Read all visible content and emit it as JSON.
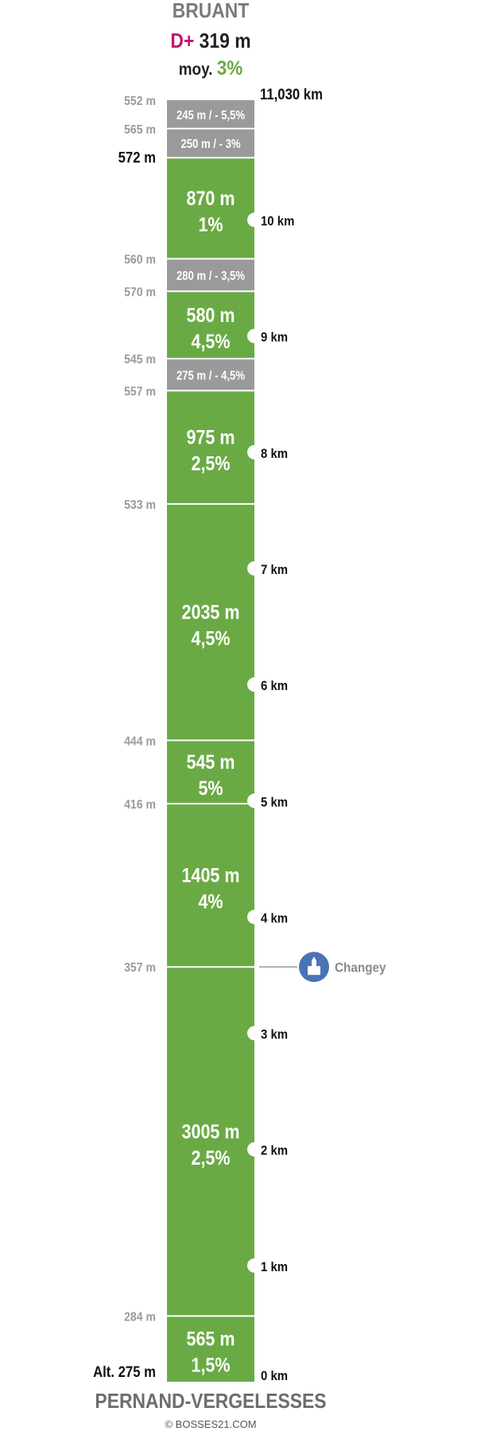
{
  "header": {
    "title": "BRUANT",
    "dplus_label": "D+",
    "dplus_value": "319 m",
    "avg_label": "moy.",
    "avg_value": "3%"
  },
  "footer": {
    "start_name": "PERNAND-VERGELESSES",
    "copyright": "© BOSSES21.COM"
  },
  "colors": {
    "climb": "#6aaa45",
    "descent": "#9a9a9a",
    "dplus": "#c8106e",
    "poi": "#4a73b5"
  },
  "chart_data": {
    "type": "bar",
    "total_distance_km": 11.03,
    "total_distance_label": "11,030 km",
    "segments": [
      {
        "length_m": 565,
        "grade": "1,5%",
        "kind": "climb",
        "label_main": "565 m",
        "label_sub": "1,5%"
      },
      {
        "length_m": 3005,
        "grade": "2,5%",
        "kind": "climb",
        "label_main": "3005 m",
        "label_sub": "2,5%"
      },
      {
        "length_m": 1405,
        "grade": "4%",
        "kind": "climb",
        "label_main": "1405 m",
        "label_sub": "4%"
      },
      {
        "length_m": 545,
        "grade": "5%",
        "kind": "climb",
        "label_main": "545 m",
        "label_sub": "5%"
      },
      {
        "length_m": 2035,
        "grade": "4,5%",
        "kind": "climb",
        "label_main": "2035 m",
        "label_sub": "4,5%"
      },
      {
        "length_m": 975,
        "grade": "2,5%",
        "kind": "climb",
        "label_main": "975 m",
        "label_sub": "2,5%"
      },
      {
        "length_m": 275,
        "grade": "-4,5%",
        "kind": "descent",
        "label_main": "275 m / - 4,5%",
        "label_sub": ""
      },
      {
        "length_m": 580,
        "grade": "4,5%",
        "kind": "climb",
        "label_main": "580 m",
        "label_sub": "4,5%"
      },
      {
        "length_m": 280,
        "grade": "-3,5%",
        "kind": "descent",
        "label_main": "280 m / - 3,5%",
        "label_sub": ""
      },
      {
        "length_m": 870,
        "grade": "1%",
        "kind": "climb",
        "label_main": "870 m",
        "label_sub": "1%"
      },
      {
        "length_m": 250,
        "grade": "-3%",
        "kind": "descent",
        "label_main": "250 m / - 3%",
        "label_sub": ""
      },
      {
        "length_m": 245,
        "grade": "-5,5%",
        "kind": "descent",
        "label_main": "245 m / - 5,5%",
        "label_sub": ""
      }
    ],
    "altitudes": [
      {
        "label": "Alt. 275 m",
        "km": 0,
        "style": "start"
      },
      {
        "label": "284 m",
        "km": 0.565,
        "style": "minor"
      },
      {
        "label": "357 m",
        "km": 3.57,
        "style": "minor"
      },
      {
        "label": "416 m",
        "km": 4.975,
        "style": "minor"
      },
      {
        "label": "444 m",
        "km": 5.52,
        "style": "minor"
      },
      {
        "label": "533 m",
        "km": 7.555,
        "style": "minor"
      },
      {
        "label": "557 m",
        "km": 8.53,
        "style": "minor"
      },
      {
        "label": "545 m",
        "km": 8.805,
        "style": "minor"
      },
      {
        "label": "570 m",
        "km": 9.385,
        "style": "minor"
      },
      {
        "label": "560 m",
        "km": 9.665,
        "style": "minor"
      },
      {
        "label": "572 m",
        "km": 10.535,
        "style": "summit"
      },
      {
        "label": "565 m",
        "km": 10.785,
        "style": "minor"
      },
      {
        "label": "552 m",
        "km": 11.03,
        "style": "minor"
      }
    ],
    "km_markers": [
      {
        "km": 0,
        "label": "0 km",
        "notch": false
      },
      {
        "km": 1,
        "label": "1 km",
        "notch": true
      },
      {
        "km": 2,
        "label": "2 km",
        "notch": true
      },
      {
        "km": 3,
        "label": "3 km",
        "notch": true
      },
      {
        "km": 4,
        "label": "4 km",
        "notch": true
      },
      {
        "km": 5,
        "label": "5 km",
        "notch": true
      },
      {
        "km": 6,
        "label": "6 km",
        "notch": true
      },
      {
        "km": 7,
        "label": "7 km",
        "notch": true
      },
      {
        "km": 8,
        "label": "8 km",
        "notch": true
      },
      {
        "km": 9,
        "label": "9 km",
        "notch": true
      },
      {
        "km": 10,
        "label": "10 km",
        "notch": true
      }
    ],
    "poi": [
      {
        "km": 3.57,
        "label": "Changey",
        "icon": "church-icon"
      }
    ]
  }
}
